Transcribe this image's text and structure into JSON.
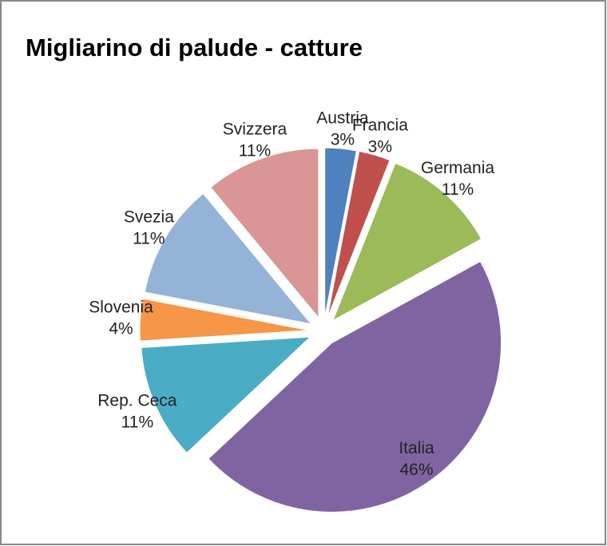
{
  "chart_data": {
    "type": "pie",
    "title": "Migliarino di palude - catture",
    "categories": [
      "Austria",
      "Francia",
      "Germania",
      "Italia",
      "Rep. Ceca",
      "Slovenia",
      "Svezia",
      "Svizzera"
    ],
    "values": [
      3,
      3,
      11,
      46,
      11,
      4,
      11,
      11
    ],
    "value_labels": [
      "3%",
      "3%",
      "11%",
      "46%",
      "11%",
      "4%",
      "11%",
      "11%"
    ],
    "colors": [
      "#4f81bd",
      "#c0504d",
      "#9bbb59",
      "#8064a2",
      "#4bacc6",
      "#f79646",
      "#95b3d7",
      "#d99694"
    ]
  }
}
